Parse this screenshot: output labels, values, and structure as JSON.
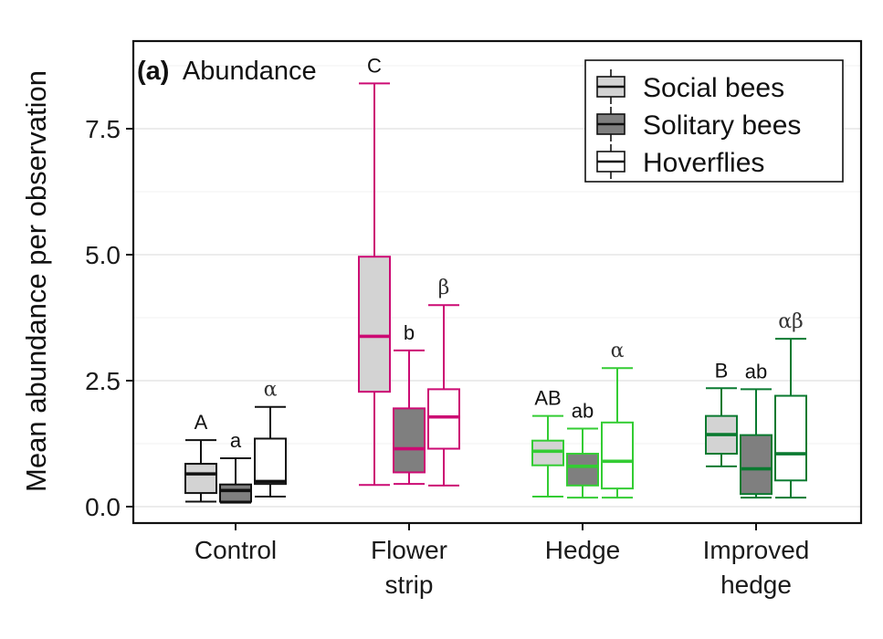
{
  "chart_data": {
    "type": "boxplot",
    "panel_tag": "(a)",
    "title": "Abundance",
    "ylabel": "Mean abundance per observation",
    "xlabel": "",
    "ylim": [
      -0.35,
      9.3
    ],
    "yticks": [
      0.0,
      2.5,
      5.0,
      7.5
    ],
    "ytick_labels": [
      "0.0",
      "2.5",
      "5.0",
      "7.5"
    ],
    "grid": true,
    "legend_position": "top-right",
    "categories": [
      {
        "lines": [
          "Control"
        ],
        "color": "#111111"
      },
      {
        "lines": [
          "Flower",
          "strip"
        ],
        "color": "#cc0a73"
      },
      {
        "lines": [
          "Hedge"
        ],
        "color": "#33cc33"
      },
      {
        "lines": [
          "Improved",
          "hedge"
        ],
        "color": "#0a7a30"
      }
    ],
    "series": [
      {
        "name": "Social bees",
        "fill": "#d3d3d3",
        "boxes": [
          {
            "whislo": 0.1,
            "q1": 0.27,
            "med": 0.65,
            "q3": 0.85,
            "whishi": 1.32
          },
          {
            "whislo": 0.43,
            "q1": 2.28,
            "med": 3.38,
            "q3": 4.96,
            "whishi": 8.4
          },
          {
            "whislo": 0.2,
            "q1": 0.82,
            "med": 1.1,
            "q3": 1.31,
            "whishi": 1.8
          },
          {
            "whislo": 0.8,
            "q1": 1.05,
            "med": 1.43,
            "q3": 1.8,
            "whishi": 2.35
          }
        ]
      },
      {
        "name": "Solitary bees",
        "fill": "#7f7f7f",
        "boxes": [
          {
            "whislo": 0.08,
            "q1": 0.1,
            "med": 0.32,
            "q3": 0.44,
            "whishi": 0.96
          },
          {
            "whislo": 0.45,
            "q1": 0.68,
            "med": 1.15,
            "q3": 1.95,
            "whishi": 3.1
          },
          {
            "whislo": 0.18,
            "q1": 0.42,
            "med": 0.8,
            "q3": 1.05,
            "whishi": 1.55
          },
          {
            "whislo": 0.18,
            "q1": 0.25,
            "med": 0.75,
            "q3": 1.42,
            "whishi": 2.33
          }
        ]
      },
      {
        "name": "Hoverflies",
        "fill": "#ffffff",
        "boxes": [
          {
            "whislo": 0.2,
            "q1": 0.45,
            "med": 0.5,
            "q3": 1.35,
            "whishi": 1.98
          },
          {
            "whislo": 0.42,
            "q1": 1.15,
            "med": 1.78,
            "q3": 2.33,
            "whishi": 4.0
          },
          {
            "whislo": 0.18,
            "q1": 0.36,
            "med": 0.9,
            "q3": 1.67,
            "whishi": 2.75
          },
          {
            "whislo": 0.18,
            "q1": 0.52,
            "med": 1.05,
            "q3": 2.2,
            "whishi": 3.33
          }
        ]
      }
    ],
    "significance_letters": [
      [
        "A",
        "a",
        "α"
      ],
      [
        "C",
        "b",
        "β"
      ],
      [
        "AB",
        "ab",
        "α"
      ],
      [
        "B",
        "ab",
        "αβ"
      ]
    ]
  }
}
